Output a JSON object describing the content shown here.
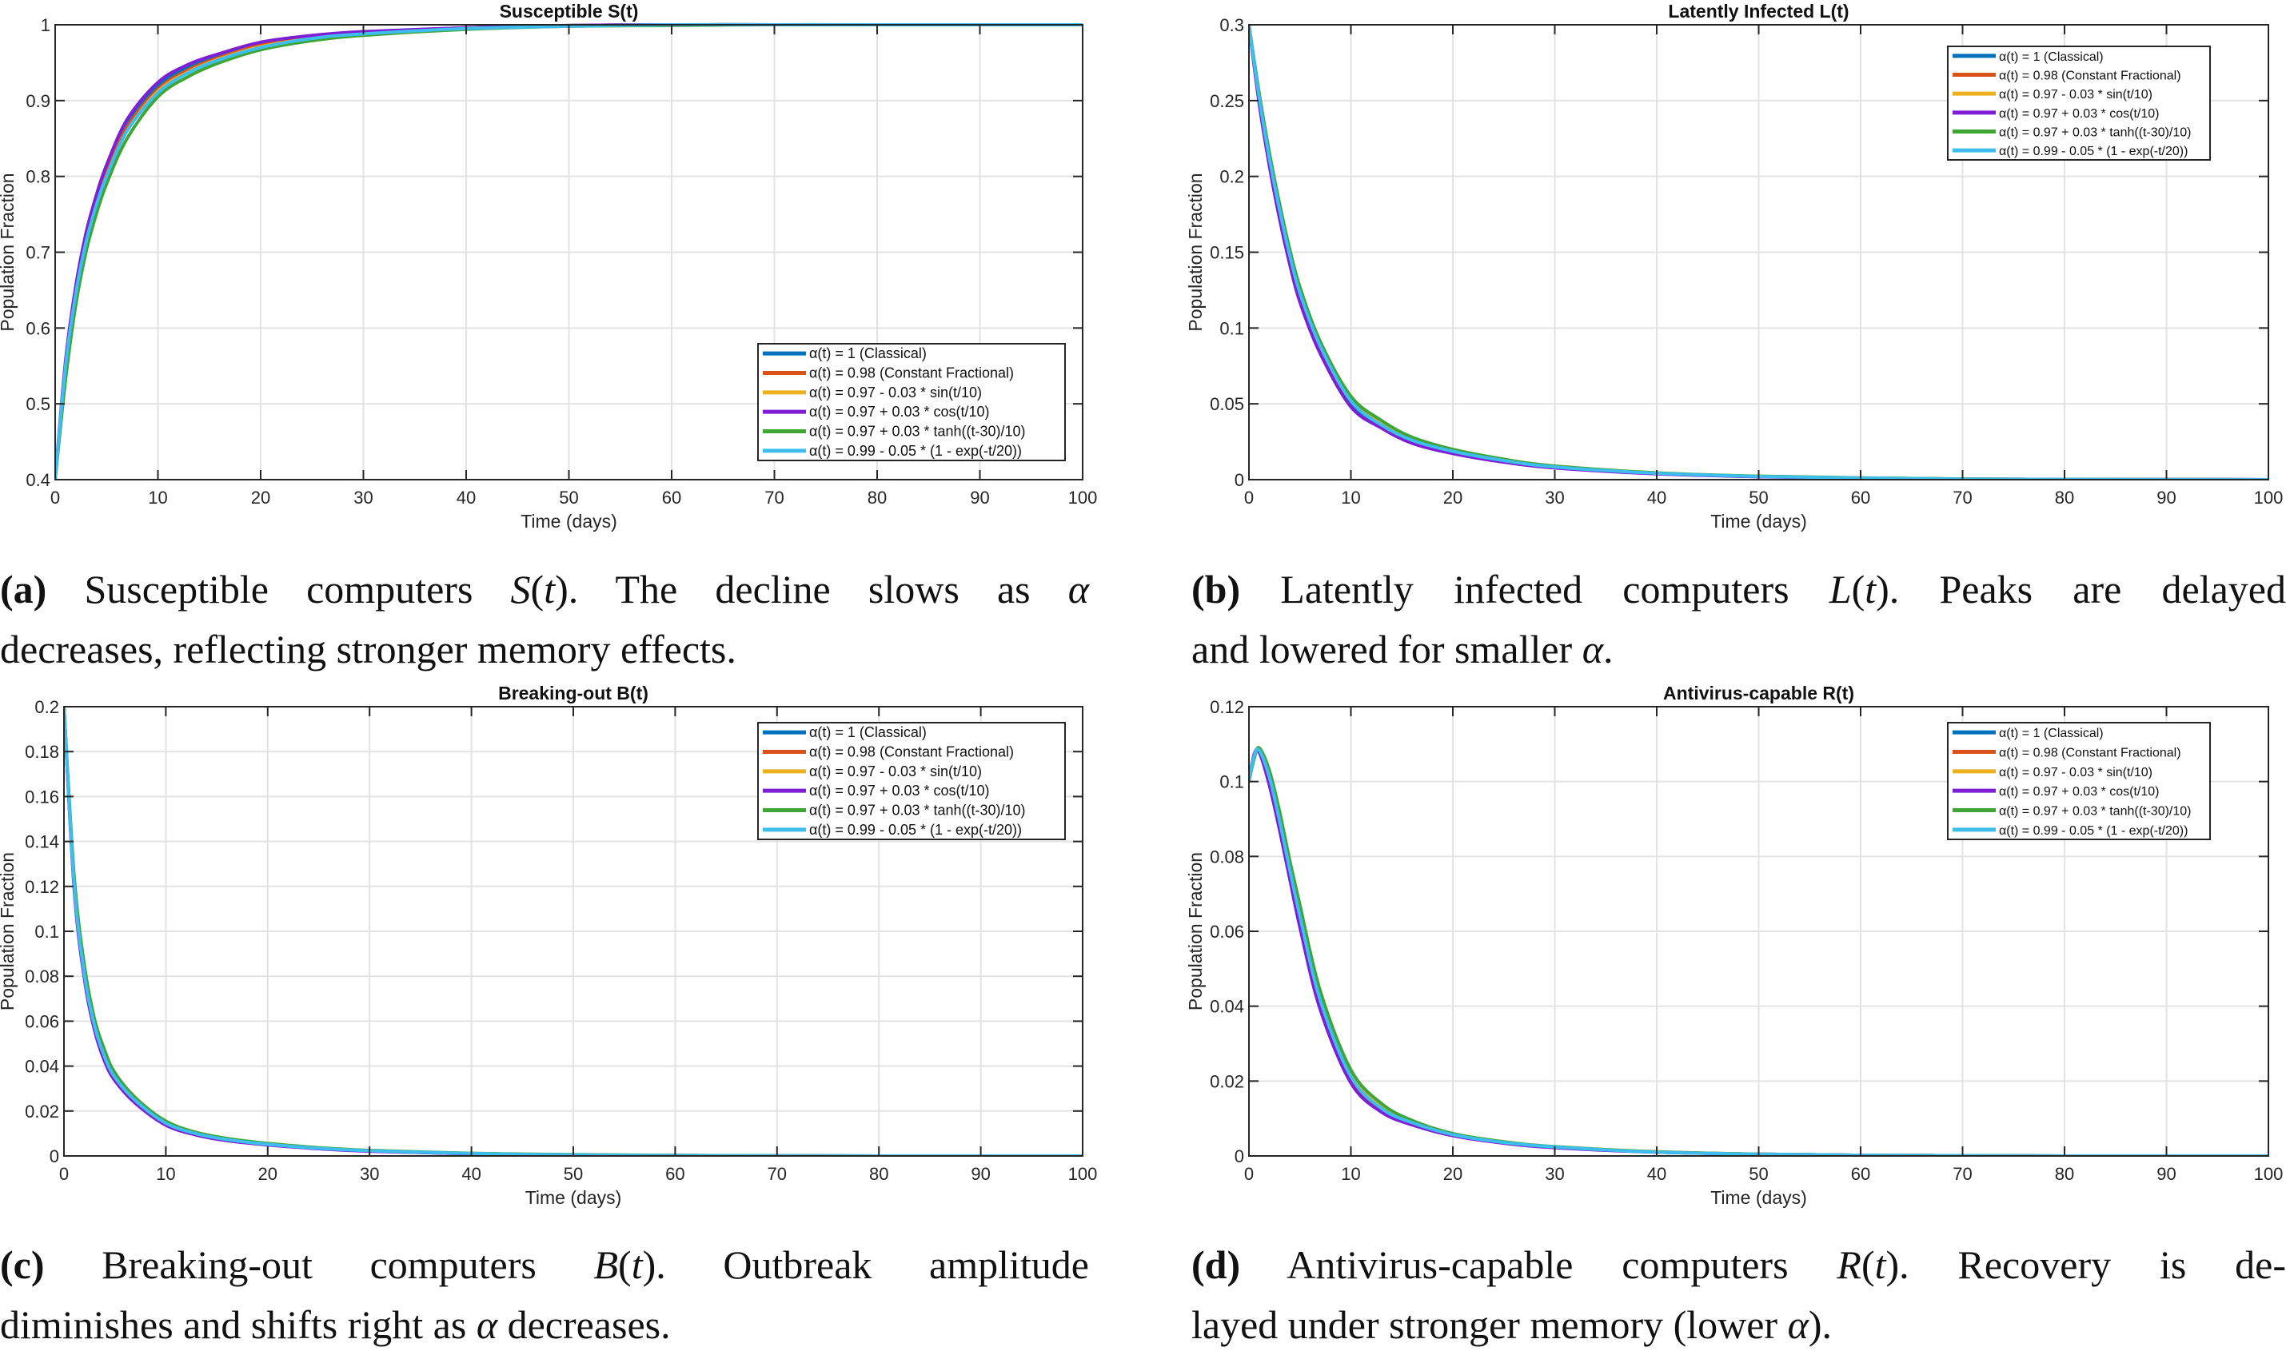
{
  "colors": [
    "#0072BD",
    "#D95319",
    "#EDB120",
    "#7E1FD6",
    "#3FA535",
    "#3DBEEE"
  ],
  "legend_labels": [
    "α(t) = 1 (Classical)",
    "α(t) = 0.98 (Constant Fractional)",
    "α(t) = 0.97 - 0.03 * sin(t/10)",
    "α(t) = 0.97 + 0.03 * cos(t/10)",
    "α(t) = 0.97 + 0.03 * tanh((t-30)/10)",
    "α(t) = 0.99 - 0.05 * (1 - exp(-t/20))"
  ],
  "chart_data": [
    {
      "type": "line",
      "title": "Susceptible S(t)",
      "xlabel": "Time (days)",
      "ylabel": "Population Fraction",
      "xlim": [
        0,
        100
      ],
      "ylim": [
        0.4,
        1
      ],
      "xticks": [
        0,
        10,
        20,
        30,
        40,
        50,
        60,
        70,
        80,
        90,
        100
      ],
      "yticks": [
        0.4,
        0.5,
        0.6,
        0.7,
        0.8,
        0.9,
        1
      ],
      "ytick_labels": [
        "0.4",
        "0.5",
        "0.6",
        "0.7",
        "0.8",
        "0.9",
        "1"
      ],
      "grid": true,
      "legend": "bottom-right",
      "x": [
        0,
        1,
        2,
        3,
        4,
        5,
        7,
        10,
        13,
        16,
        20,
        25,
        30,
        40,
        50,
        60,
        70,
        80,
        100
      ],
      "series": [
        {
          "values": [
            0.4,
            0.55,
            0.65,
            0.72,
            0.77,
            0.81,
            0.87,
            0.92,
            0.945,
            0.96,
            0.975,
            0.985,
            0.99,
            0.996,
            0.999,
            1,
            1,
            1,
            1
          ]
        },
        {
          "values": [
            0.4,
            0.545,
            0.645,
            0.715,
            0.765,
            0.805,
            0.865,
            0.915,
            0.941,
            0.957,
            0.973,
            0.984,
            0.989,
            0.996,
            0.999,
            1,
            1,
            1,
            1
          ]
        },
        {
          "values": [
            0.4,
            0.54,
            0.64,
            0.71,
            0.76,
            0.8,
            0.86,
            0.912,
            0.938,
            0.955,
            0.971,
            0.982,
            0.988,
            0.995,
            0.998,
            1,
            1,
            1,
            1
          ]
        },
        {
          "values": [
            0.4,
            0.555,
            0.655,
            0.725,
            0.775,
            0.815,
            0.875,
            0.924,
            0.948,
            0.962,
            0.977,
            0.986,
            0.991,
            0.996,
            0.999,
            1,
            1,
            1,
            1
          ]
        },
        {
          "values": [
            0.4,
            0.53,
            0.63,
            0.7,
            0.75,
            0.79,
            0.85,
            0.905,
            0.932,
            0.95,
            0.967,
            0.979,
            0.986,
            0.994,
            0.998,
            0.999,
            1,
            1,
            1
          ]
        },
        {
          "values": [
            0.4,
            0.548,
            0.645,
            0.713,
            0.762,
            0.8,
            0.86,
            0.91,
            0.937,
            0.954,
            0.97,
            0.982,
            0.988,
            0.995,
            0.998,
            1,
            1,
            1,
            1
          ]
        }
      ]
    },
    {
      "type": "line",
      "title": "Latently Infected L(t)",
      "xlabel": "Time (days)",
      "ylabel": "Population Fraction",
      "xlim": [
        0,
        100
      ],
      "ylim": [
        0,
        0.3
      ],
      "xticks": [
        0,
        10,
        20,
        30,
        40,
        50,
        60,
        70,
        80,
        90,
        100
      ],
      "yticks": [
        0,
        0.05,
        0.1,
        0.15,
        0.2,
        0.25,
        0.3
      ],
      "ytick_labels": [
        "0",
        "0.05",
        "0.1",
        "0.15",
        "0.2",
        "0.25",
        "0.3"
      ],
      "grid": true,
      "legend": "top-right",
      "x": [
        0,
        1,
        2,
        3,
        4,
        5,
        7,
        10,
        13,
        16,
        20,
        25,
        30,
        40,
        50,
        60,
        70,
        80,
        100
      ],
      "series": [
        {
          "values": [
            0.3,
            0.25,
            0.21,
            0.175,
            0.145,
            0.12,
            0.085,
            0.05,
            0.035,
            0.025,
            0.018,
            0.012,
            0.008,
            0.004,
            0.002,
            0.001,
            0.0004,
            0.0002,
            0
          ]
        },
        {
          "values": [
            0.3,
            0.252,
            0.212,
            0.177,
            0.147,
            0.122,
            0.087,
            0.052,
            0.036,
            0.026,
            0.0186,
            0.0125,
            0.0083,
            0.0042,
            0.0021,
            0.0011,
            0.0004,
            0.0002,
            0
          ]
        },
        {
          "values": [
            0.3,
            0.253,
            0.213,
            0.179,
            0.149,
            0.124,
            0.088,
            0.053,
            0.037,
            0.027,
            0.019,
            0.0128,
            0.0086,
            0.0043,
            0.0022,
            0.0011,
            0.0005,
            0.0002,
            0
          ]
        },
        {
          "values": [
            0.3,
            0.248,
            0.207,
            0.172,
            0.142,
            0.117,
            0.083,
            0.048,
            0.034,
            0.024,
            0.0172,
            0.0115,
            0.0077,
            0.0038,
            0.0019,
            0.001,
            0.0004,
            0.0002,
            0
          ]
        },
        {
          "values": [
            0.3,
            0.255,
            0.216,
            0.182,
            0.152,
            0.127,
            0.091,
            0.055,
            0.039,
            0.028,
            0.02,
            0.0135,
            0.009,
            0.0045,
            0.0023,
            0.0012,
            0.0005,
            0.0002,
            0
          ]
        },
        {
          "values": [
            0.3,
            0.252,
            0.212,
            0.178,
            0.148,
            0.123,
            0.088,
            0.052,
            0.036,
            0.026,
            0.0187,
            0.0126,
            0.0084,
            0.0042,
            0.0021,
            0.0011,
            0.0004,
            0.0002,
            0
          ]
        }
      ]
    },
    {
      "type": "line",
      "title": "Breaking-out B(t)",
      "xlabel": "Time (days)",
      "ylabel": "Population Fraction",
      "xlim": [
        0,
        100
      ],
      "ylim": [
        0,
        0.2
      ],
      "xticks": [
        0,
        10,
        20,
        30,
        40,
        50,
        60,
        70,
        80,
        90,
        100
      ],
      "yticks": [
        0,
        0.02,
        0.04,
        0.06,
        0.08,
        0.1,
        0.12,
        0.14,
        0.16,
        0.18,
        0.2
      ],
      "ytick_labels": [
        "0",
        "0.02",
        "0.04",
        "0.06",
        "0.08",
        "0.1",
        "0.12",
        "0.14",
        "0.16",
        "0.18",
        "0.2"
      ],
      "grid": true,
      "legend": "top-right",
      "x": [
        0,
        1,
        2,
        3,
        4,
        5,
        7,
        10,
        13,
        16,
        20,
        25,
        30,
        40,
        50,
        60,
        70,
        80,
        100
      ],
      "series": [
        {
          "values": [
            0.2,
            0.12,
            0.08,
            0.057,
            0.043,
            0.034,
            0.024,
            0.014,
            0.0095,
            0.007,
            0.005,
            0.0033,
            0.0022,
            0.001,
            0.0005,
            0.0002,
            0.0001,
            0,
            0
          ]
        },
        {
          "values": [
            0.2,
            0.121,
            0.081,
            0.058,
            0.044,
            0.035,
            0.0245,
            0.0145,
            0.0098,
            0.0072,
            0.0052,
            0.0034,
            0.0023,
            0.0011,
            0.0005,
            0.0002,
            0.0001,
            0,
            0
          ]
        },
        {
          "values": [
            0.2,
            0.122,
            0.082,
            0.059,
            0.045,
            0.0355,
            0.025,
            0.0148,
            0.01,
            0.0074,
            0.0053,
            0.0035,
            0.0023,
            0.0011,
            0.0005,
            0.0002,
            0.0001,
            0,
            0
          ]
        },
        {
          "values": [
            0.2,
            0.119,
            0.079,
            0.056,
            0.042,
            0.0335,
            0.0235,
            0.0137,
            0.0093,
            0.0068,
            0.0049,
            0.0032,
            0.0021,
            0.001,
            0.0005,
            0.0002,
            0.0001,
            0,
            0
          ]
        },
        {
          "values": [
            0.2,
            0.125,
            0.085,
            0.061,
            0.047,
            0.037,
            0.026,
            0.0155,
            0.0105,
            0.0078,
            0.0056,
            0.0037,
            0.0025,
            0.0012,
            0.0006,
            0.0003,
            0.0001,
            0,
            0
          ]
        },
        {
          "values": [
            0.2,
            0.121,
            0.081,
            0.058,
            0.044,
            0.035,
            0.0247,
            0.0146,
            0.0099,
            0.0073,
            0.0052,
            0.0034,
            0.0023,
            0.0011,
            0.0005,
            0.0002,
            0.0001,
            0,
            0
          ]
        }
      ]
    },
    {
      "type": "line",
      "title": "Antivirus-capable R(t)",
      "xlabel": "Time (days)",
      "ylabel": "Population Fraction",
      "xlim": [
        0,
        100
      ],
      "ylim": [
        0,
        0.12
      ],
      "xticks": [
        0,
        10,
        20,
        30,
        40,
        50,
        60,
        70,
        80,
        90,
        100
      ],
      "yticks": [
        0,
        0.02,
        0.04,
        0.06,
        0.08,
        0.1,
        0.12
      ],
      "ytick_labels": [
        "0",
        "0.02",
        "0.04",
        "0.06",
        "0.08",
        "0.1",
        "0.12"
      ],
      "grid": true,
      "legend": "top-right",
      "x": [
        0,
        0.5,
        1,
        2,
        3,
        4,
        5,
        7,
        10,
        13,
        16,
        20,
        25,
        30,
        40,
        50,
        60,
        70,
        80,
        100
      ],
      "series": [
        {
          "values": [
            0.1,
            0.107,
            0.108,
            0.1,
            0.088,
            0.075,
            0.062,
            0.04,
            0.02,
            0.012,
            0.0085,
            0.0055,
            0.0035,
            0.0023,
            0.001,
            0.0005,
            0.0002,
            0.0001,
            0,
            0
          ]
        },
        {
          "values": [
            0.1,
            0.1068,
            0.1083,
            0.101,
            0.089,
            0.076,
            0.0635,
            0.041,
            0.021,
            0.0126,
            0.0088,
            0.0057,
            0.0036,
            0.0024,
            0.001,
            0.0005,
            0.0002,
            0.0001,
            0,
            0
          ]
        },
        {
          "values": [
            0.1,
            0.1066,
            0.1085,
            0.1015,
            0.09,
            0.077,
            0.0645,
            0.042,
            0.0217,
            0.013,
            0.009,
            0.0058,
            0.0037,
            0.0024,
            0.0011,
            0.0005,
            0.0002,
            0.0001,
            0,
            0
          ]
        },
        {
          "values": [
            0.1,
            0.1072,
            0.1078,
            0.099,
            0.087,
            0.074,
            0.061,
            0.039,
            0.0195,
            0.0117,
            0.0083,
            0.0054,
            0.0034,
            0.0022,
            0.001,
            0.0005,
            0.0002,
            0.0001,
            0,
            0
          ]
        },
        {
          "values": [
            0.1,
            0.106,
            0.109,
            0.103,
            0.092,
            0.079,
            0.067,
            0.044,
            0.023,
            0.014,
            0.0095,
            0.006,
            0.0038,
            0.0025,
            0.0011,
            0.0005,
            0.0002,
            0.0001,
            0,
            0
          ]
        },
        {
          "values": [
            0.1,
            0.1067,
            0.1084,
            0.1012,
            0.0895,
            0.0765,
            0.064,
            0.0415,
            0.0212,
            0.0127,
            0.0089,
            0.0057,
            0.0036,
            0.0024,
            0.001,
            0.0005,
            0.0002,
            0.0001,
            0,
            0
          ]
        }
      ]
    }
  ],
  "captions": [
    {
      "lines": [
        [
          {
            "t": "(a)",
            "s": "b"
          },
          {
            "t": " Susceptible computers "
          },
          {
            "t": "S",
            "s": "m"
          },
          {
            "t": "("
          },
          {
            "t": "t",
            "s": "m"
          },
          {
            "t": "). The decline slows as "
          },
          {
            "t": "α",
            "s": "m"
          }
        ],
        [
          {
            "t": "decreases, reflecting stronger memory effects."
          }
        ]
      ]
    },
    {
      "lines": [
        [
          {
            "t": "(b)",
            "s": "b"
          },
          {
            "t": " Latently infected computers "
          },
          {
            "t": "L",
            "s": "m"
          },
          {
            "t": "("
          },
          {
            "t": "t",
            "s": "m"
          },
          {
            "t": "). Peaks are delayed"
          }
        ],
        [
          {
            "t": "and lowered for smaller "
          },
          {
            "t": "α",
            "s": "m"
          },
          {
            "t": "."
          }
        ]
      ]
    },
    {
      "lines": [
        [
          {
            "t": "(c)",
            "s": "b"
          },
          {
            "t": " Breaking-out computers "
          },
          {
            "t": "B",
            "s": "m"
          },
          {
            "t": "("
          },
          {
            "t": "t",
            "s": "m"
          },
          {
            "t": "). Outbreak amplitude"
          }
        ],
        [
          {
            "t": "diminishes and shifts right as "
          },
          {
            "t": "α",
            "s": "m"
          },
          {
            "t": " decreases."
          }
        ]
      ]
    },
    {
      "lines": [
        [
          {
            "t": "(d)",
            "s": "b"
          },
          {
            "t": " Antivirus-capable computers "
          },
          {
            "t": "R",
            "s": "m"
          },
          {
            "t": "("
          },
          {
            "t": "t",
            "s": "m"
          },
          {
            "t": "). Recovery is de-"
          }
        ],
        [
          {
            "t": "layed under stronger memory (lower "
          },
          {
            "t": "α",
            "s": "m"
          },
          {
            "t": ")."
          }
        ]
      ]
    }
  ]
}
